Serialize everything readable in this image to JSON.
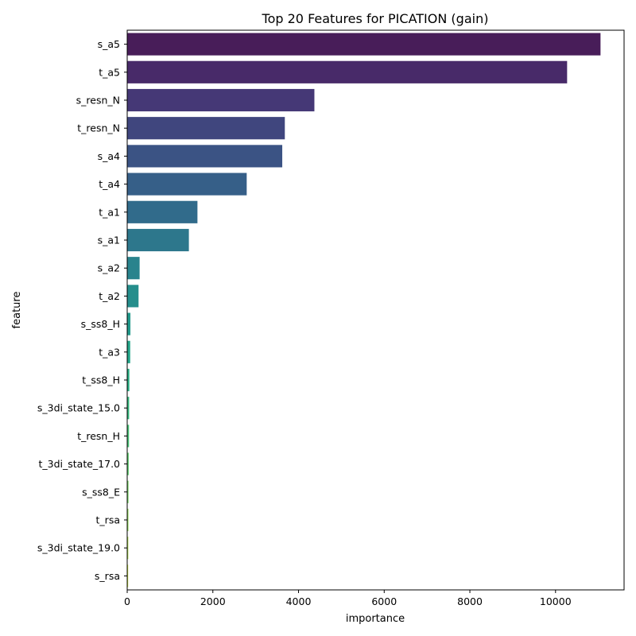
{
  "chart_data": {
    "type": "bar",
    "orientation": "horizontal",
    "title": "Top 20 Features for PICATION (gain)",
    "xlabel": "importance",
    "ylabel": "feature",
    "xlim": [
      0,
      11600
    ],
    "xticks": [
      0,
      2000,
      4000,
      6000,
      8000,
      10000
    ],
    "grid": false,
    "legend": "none",
    "colormap": "viridis",
    "categories": [
      "s_a5",
      "t_a5",
      "s_resn_N",
      "t_resn_N",
      "s_a4",
      "t_a4",
      "t_a1",
      "s_a1",
      "s_a2",
      "t_a2",
      "s_ss8_H",
      "t_a3",
      "t_ss8_H",
      "s_3di_state_15.0",
      "t_resn_H",
      "t_3di_state_17.0",
      "s_ss8_E",
      "t_rsa",
      "s_3di_state_19.0",
      "s_rsa"
    ],
    "values": [
      11050,
      10270,
      4370,
      3680,
      3620,
      2790,
      1640,
      1440,
      290,
      265,
      75,
      70,
      50,
      45,
      42,
      35,
      30,
      28,
      25,
      22
    ],
    "colors": [
      "#481d59",
      "#482a69",
      "#453876",
      "#40467e",
      "#3b5384",
      "#365f88",
      "#316b8b",
      "#2d778c",
      "#29838d",
      "#258e8c",
      "#21998b",
      "#22a589",
      "#29af84",
      "#35b97e",
      "#47c276",
      "#5ccb6d",
      "#75d262",
      "#90d856",
      "#acdd48",
      "#c8e03e"
    ]
  }
}
